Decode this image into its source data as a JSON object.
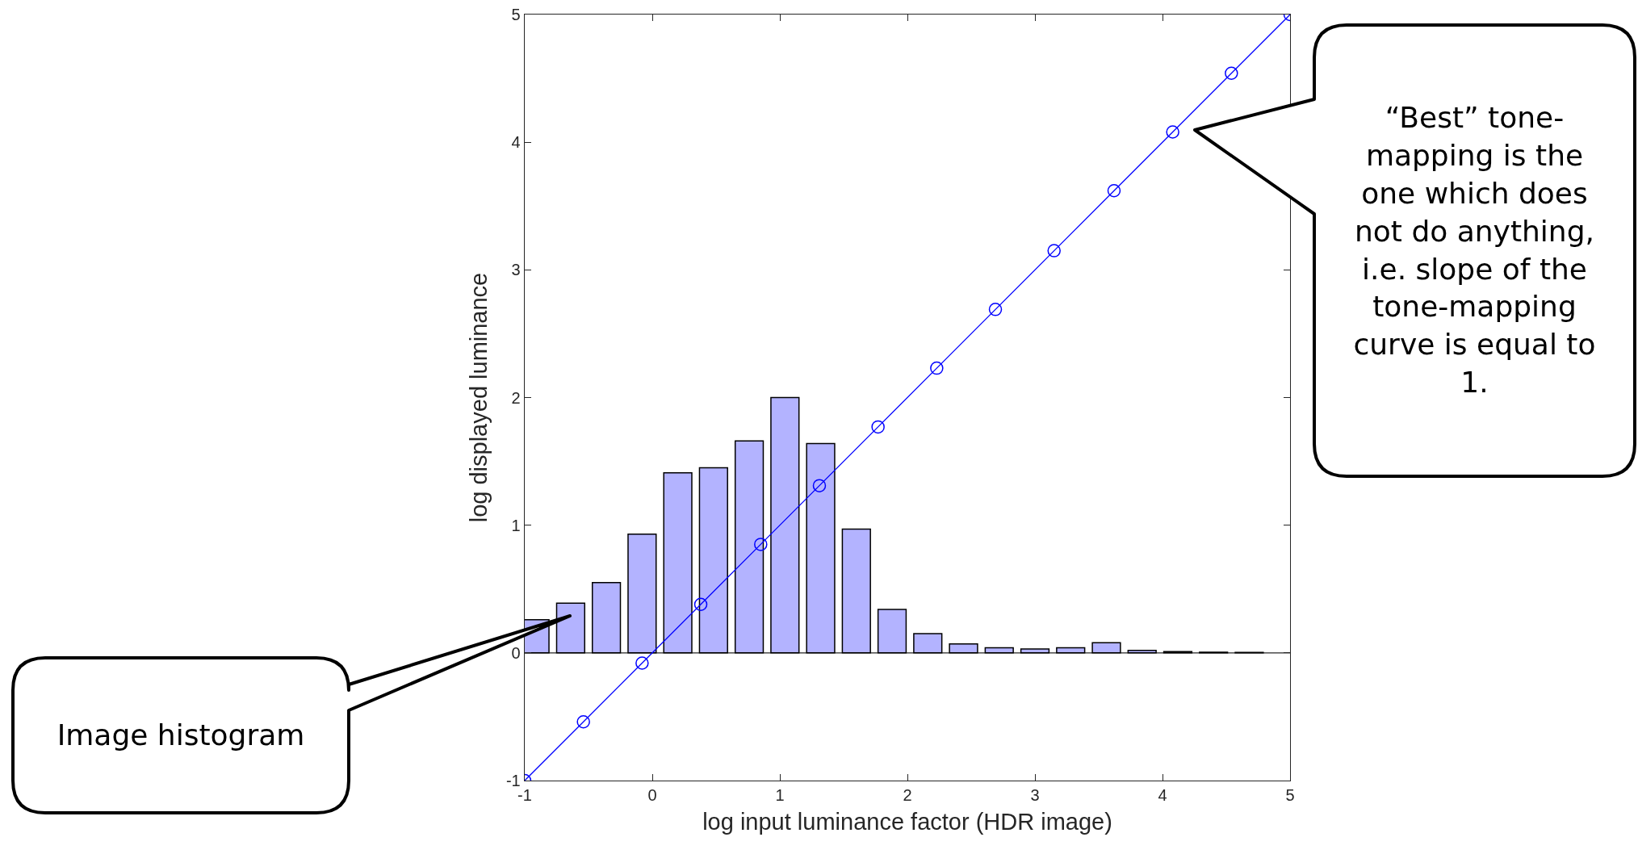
{
  "chart_data": {
    "type": "bar",
    "xlabel": "log input luminance factor (HDR image)",
    "ylabel": "log displayed luminance",
    "xlim": [
      -1,
      5
    ],
    "ylim": [
      -1,
      5
    ],
    "xticks": [
      -1,
      0,
      1,
      2,
      3,
      4,
      5
    ],
    "yticks": [
      -1,
      0,
      1,
      2,
      3,
      4,
      5
    ],
    "grid": false,
    "marker": "circle",
    "line_style": "solid",
    "series": [
      {
        "color": "#b3b3ff",
        "x": [
          -0.92,
          -0.64,
          -0.36,
          -0.08,
          0.2,
          0.48,
          0.76,
          1.04,
          1.32,
          1.6,
          1.88,
          2.16,
          2.44,
          2.72,
          3.0,
          3.28,
          3.56,
          3.84,
          4.12,
          4.4,
          4.68
        ],
        "values": [
          0.26,
          0.39,
          0.55,
          0.93,
          1.41,
          1.45,
          1.66,
          2.0,
          1.64,
          0.97,
          0.34,
          0.15,
          0.07,
          0.04,
          0.03,
          0.04,
          0.08,
          0.02,
          0.01,
          0.005,
          0.003
        ]
      },
      {
        "type": "line",
        "color": "#0000ff",
        "x": [
          -1,
          -0.54,
          -0.08,
          0.38,
          0.85,
          1.31,
          1.77,
          2.23,
          2.69,
          3.15,
          3.62,
          4.08,
          4.54,
          5
        ],
        "values": [
          -1,
          -0.54,
          -0.08,
          0.38,
          0.85,
          1.31,
          1.77,
          2.23,
          2.69,
          3.15,
          3.62,
          4.08,
          4.54,
          5
        ]
      }
    ],
    "annotations": [
      "Image histogram",
      "“Best” tone-mapping is the one which does not do anything, i.e. slope of the tone-mapping curve is equal to 1."
    ],
    "ref_lines": [
      {
        "axis": "y",
        "value": 0,
        "color": "#262626"
      }
    ]
  }
}
